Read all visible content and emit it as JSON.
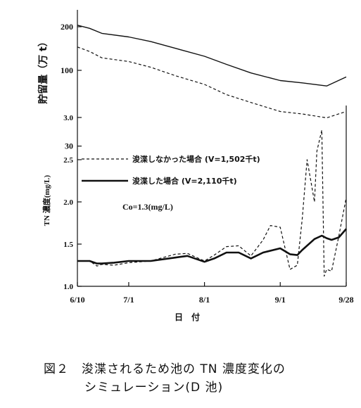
{
  "chart_data": [
    {
      "type": "line",
      "ylabel": "貯留量（万 t）",
      "y_scale": "log",
      "yticks": [
        200,
        100,
        30
      ],
      "xticks": [
        "6/10",
        "7/1",
        "8/1",
        "9/1",
        "9/28"
      ],
      "grid": false,
      "series": [
        {
          "name": "浚渫した場合 (V=2,110千t)",
          "style": "solid",
          "x": [
            "6/10",
            "6/15",
            "6/20",
            "7/1",
            "7/10",
            "7/20",
            "8/1",
            "8/10",
            "8/20",
            "9/1",
            "9/10",
            "9/20",
            "9/28"
          ],
          "y": [
            205,
            195,
            180,
            170,
            158,
            142,
            125,
            110,
            96,
            85,
            82,
            78,
            90
          ]
        },
        {
          "name": "浚渫しなかった場合 (V=1,502千t)",
          "style": "dashed",
          "x": [
            "6/10",
            "6/15",
            "6/20",
            "7/1",
            "7/10",
            "7/20",
            "8/1",
            "8/10",
            "8/20",
            "9/1",
            "9/10",
            "9/20",
            "9/28"
          ],
          "y": [
            145,
            135,
            122,
            115,
            105,
            92,
            80,
            68,
            60,
            52,
            50,
            47,
            52
          ]
        }
      ]
    },
    {
      "type": "line",
      "ylabel": "TN 濃度(mg/L)",
      "xlabel": "日　付",
      "ylim": [
        1.0,
        3.0
      ],
      "yticks": [
        "1.0",
        "1.5",
        "2.0",
        "2.5",
        "3.0"
      ],
      "xticks": [
        "6/10",
        "7/1",
        "8/1",
        "9/1",
        "9/28"
      ],
      "grid": false,
      "legend_position": "upper-left",
      "annotation": "Co=1.3(mg/L)",
      "series": [
        {
          "name": "浚渫しなかった場合 (V=1,502千t)",
          "style": "dashed",
          "x": [
            "6/10",
            "6/15",
            "6/18",
            "6/20",
            "6/25",
            "7/1",
            "7/10",
            "7/20",
            "7/25",
            "8/1",
            "8/5",
            "8/10",
            "8/15",
            "8/20",
            "8/25",
            "8/28",
            "9/1",
            "9/5",
            "9/8",
            "9/10",
            "9/12",
            "9/15",
            "9/16",
            "9/18",
            "9/19",
            "9/20",
            "9/22",
            "9/25",
            "9/28"
          ],
          "y": [
            1.3,
            1.3,
            1.24,
            1.26,
            1.25,
            1.28,
            1.3,
            1.38,
            1.39,
            1.3,
            1.37,
            1.47,
            1.48,
            1.36,
            1.55,
            1.72,
            1.7,
            1.2,
            1.25,
            1.8,
            2.5,
            2.0,
            2.6,
            2.85,
            1.12,
            1.2,
            1.18,
            1.6,
            2.05
          ]
        },
        {
          "name": "浚渫した場合 (V=2,110千t)",
          "style": "solid",
          "x": [
            "6/10",
            "6/15",
            "6/18",
            "6/20",
            "6/25",
            "7/1",
            "7/10",
            "7/20",
            "7/25",
            "8/1",
            "8/5",
            "8/10",
            "8/15",
            "8/20",
            "8/25",
            "9/1",
            "9/5",
            "9/8",
            "9/10",
            "9/15",
            "9/18",
            "9/20",
            "9/22",
            "9/25",
            "9/28"
          ],
          "y": [
            1.3,
            1.3,
            1.27,
            1.27,
            1.28,
            1.3,
            1.3,
            1.34,
            1.36,
            1.29,
            1.33,
            1.4,
            1.4,
            1.33,
            1.4,
            1.45,
            1.38,
            1.37,
            1.43,
            1.56,
            1.6,
            1.57,
            1.55,
            1.58,
            1.68
          ]
        }
      ]
    }
  ],
  "caption": {
    "number": "図２",
    "line1": "浚渫されるため池の TN 濃度変化の",
    "line2": "シミュレーション(D 池)"
  },
  "colors": {
    "ink": "#111111",
    "background": "#ffffff"
  }
}
